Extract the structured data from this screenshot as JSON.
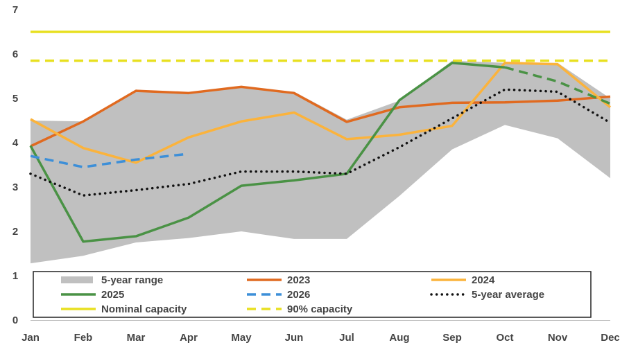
{
  "chart_data": {
    "type": "line",
    "categories": [
      "Jan",
      "Feb",
      "Mar",
      "Apr",
      "May",
      "Jun",
      "Jul",
      "Aug",
      "Sep",
      "Oct",
      "Nov",
      "Dec"
    ],
    "ylim": [
      0,
      7
    ],
    "yticks": [
      0,
      1,
      2,
      3,
      4,
      5,
      6,
      7
    ],
    "grid": false,
    "range": {
      "name": "5-year range",
      "color": "#c0c0c0",
      "low": [
        1.28,
        1.45,
        1.75,
        1.85,
        2.0,
        1.83,
        1.83,
        2.8,
        3.85,
        4.4,
        4.1,
        3.2
      ],
      "high": [
        4.5,
        4.48,
        5.2,
        5.1,
        5.25,
        5.15,
        4.52,
        4.95,
        5.85,
        5.8,
        5.8,
        5.0
      ]
    },
    "series": [
      {
        "name": "2023",
        "color": "#e06a20",
        "dash": "solid",
        "values": [
          3.92,
          4.48,
          5.17,
          5.12,
          5.26,
          5.12,
          4.47,
          4.8,
          4.9,
          4.91,
          4.95,
          5.04
        ]
      },
      {
        "name": "2024",
        "color": "#fbb33c",
        "dash": "solid",
        "values": [
          4.53,
          3.88,
          3.55,
          4.12,
          4.48,
          4.68,
          4.08,
          4.18,
          4.38,
          5.8,
          5.77,
          4.8
        ]
      },
      {
        "name": "2025",
        "color": "#4a9245",
        "dash": "solid",
        "values": [
          3.93,
          1.77,
          1.89,
          2.31,
          3.03,
          3.15,
          3.3,
          4.96,
          5.8,
          5.7,
          null,
          null
        ]
      },
      {
        "name": "2025 (forecast)",
        "color": "#4a9245",
        "dash": "long",
        "legend": false,
        "values": [
          null,
          null,
          null,
          null,
          null,
          null,
          null,
          null,
          null,
          5.7,
          5.38,
          4.88
        ]
      },
      {
        "name": "2026",
        "color": "#3d8fd8",
        "dash": "long",
        "values": [
          3.7,
          3.45,
          3.62,
          3.75,
          null,
          null,
          null,
          null,
          null,
          null,
          null,
          null
        ]
      },
      {
        "name": "5-year average",
        "color": "#111111",
        "dash": "dot",
        "values": [
          3.3,
          2.81,
          2.93,
          3.07,
          3.35,
          3.35,
          3.3,
          3.9,
          4.55,
          5.2,
          5.15,
          4.45
        ]
      }
    ],
    "reference_lines": [
      {
        "name": "Nominal capacity",
        "color": "#e8e020",
        "dash": "solid",
        "value": 6.5
      },
      {
        "name": "90% capacity",
        "color": "#e8e020",
        "dash": "long",
        "value": 5.85
      }
    ],
    "legend": {
      "placement": "bottom-inside",
      "rows": [
        [
          "5-year range",
          "2023",
          "2024"
        ],
        [
          "2025",
          "2026",
          "5-year average"
        ],
        [
          "Nominal capacity",
          "90% capacity"
        ]
      ]
    }
  }
}
